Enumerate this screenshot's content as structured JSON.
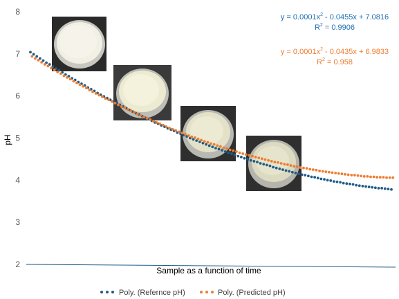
{
  "chart_data": {
    "type": "scatter",
    "xlabel": "Sample as a function of time",
    "ylabel": "pH",
    "ylim": [
      2,
      8
    ],
    "yticks": [
      2,
      3,
      4,
      5,
      6,
      7,
      8
    ],
    "grid": false,
    "legend_position": "bottom",
    "series": [
      {
        "name": "Poly. (Refernce pH)",
        "color": "#1F5C87",
        "x": [
          1,
          3,
          5,
          7,
          9,
          11,
          13,
          15,
          17,
          19,
          21,
          23,
          25,
          27,
          29,
          31,
          33,
          35,
          37,
          39,
          41,
          43,
          45,
          47,
          49,
          51,
          53,
          55,
          57,
          59,
          61,
          63,
          65,
          67,
          69,
          71,
          73,
          75,
          77,
          79,
          81,
          83,
          85,
          87,
          89,
          91,
          93,
          95,
          97,
          99,
          101,
          103,
          105,
          107,
          109,
          111,
          113,
          115,
          117,
          119,
          121,
          123,
          125,
          127,
          129,
          131,
          133,
          135,
          137,
          139,
          141,
          143,
          145,
          147,
          149,
          151,
          153,
          155,
          157,
          159,
          161,
          163,
          165,
          167,
          169,
          171,
          173,
          175,
          177,
          179,
          181,
          183,
          185,
          187,
          189,
          191,
          193,
          195,
          197,
          199,
          201,
          203,
          205,
          207,
          209,
          211,
          213,
          215,
          217,
          219,
          221,
          223,
          225,
          227
        ],
        "y": [
          7.04,
          6.99,
          6.94,
          6.89,
          6.84,
          6.79,
          6.75,
          6.7,
          6.65,
          6.61,
          6.56,
          6.51,
          6.47,
          6.42,
          6.38,
          6.33,
          6.29,
          6.25,
          6.2,
          6.16,
          6.12,
          6.07,
          6.03,
          5.99,
          5.95,
          5.91,
          5.87,
          5.83,
          5.79,
          5.75,
          5.71,
          5.67,
          5.63,
          5.59,
          5.56,
          5.52,
          5.48,
          5.45,
          5.41,
          5.37,
          5.34,
          5.3,
          5.27,
          5.23,
          5.2,
          5.17,
          5.13,
          5.1,
          5.07,
          5.04,
          5.0,
          4.97,
          4.94,
          4.91,
          4.88,
          4.85,
          4.82,
          4.79,
          4.76,
          4.74,
          4.71,
          4.68,
          4.65,
          4.63,
          4.6,
          4.57,
          4.55,
          4.52,
          4.5,
          4.47,
          4.45,
          4.43,
          4.4,
          4.38,
          4.36,
          4.34,
          4.31,
          4.29,
          4.27,
          4.25,
          4.23,
          4.21,
          4.19,
          4.17,
          4.15,
          4.13,
          4.12,
          4.1,
          4.08,
          4.07,
          4.05,
          4.03,
          4.02,
          4.0,
          3.99,
          3.97,
          3.96,
          3.95,
          3.93,
          3.92,
          3.91,
          3.9,
          3.88,
          3.87,
          3.86,
          3.85,
          3.84,
          3.83,
          3.82,
          3.81,
          3.81,
          3.8,
          3.79,
          3.78
        ],
        "equation": "y = 0.0001x",
        "equation_tail": " - 0.0455x + 7.0816",
        "r2_value": " = 0.9906"
      },
      {
        "name": "Poly. (Predicted pH)",
        "color": "#ED7D31",
        "x": [
          1,
          3,
          5,
          7,
          9,
          11,
          13,
          15,
          17,
          19,
          21,
          23,
          25,
          27,
          29,
          31,
          33,
          35,
          37,
          39,
          41,
          43,
          45,
          47,
          49,
          51,
          53,
          55,
          57,
          59,
          61,
          63,
          65,
          67,
          69,
          71,
          73,
          75,
          77,
          79,
          81,
          83,
          85,
          87,
          89,
          91,
          93,
          95,
          97,
          99,
          101,
          103,
          105,
          107,
          109,
          111,
          113,
          115,
          117,
          119,
          121,
          123,
          125,
          127,
          129,
          131,
          133,
          135,
          137,
          139,
          141,
          143,
          145,
          147,
          149,
          151,
          153,
          155,
          157,
          159,
          161,
          163,
          165,
          167,
          169,
          171,
          173,
          175,
          177,
          179,
          181,
          183,
          185,
          187,
          189,
          191,
          193,
          195,
          197,
          199,
          201,
          203,
          205,
          207,
          209,
          211,
          213,
          215,
          217,
          219,
          221,
          223,
          225,
          227
        ],
        "y": [
          6.94,
          6.89,
          6.85,
          6.8,
          6.75,
          6.71,
          6.66,
          6.62,
          6.57,
          6.53,
          6.48,
          6.44,
          6.4,
          6.35,
          6.31,
          6.27,
          6.23,
          6.19,
          6.14,
          6.1,
          6.06,
          6.02,
          5.98,
          5.94,
          5.91,
          5.87,
          5.83,
          5.79,
          5.75,
          5.72,
          5.68,
          5.65,
          5.61,
          5.57,
          5.54,
          5.5,
          5.47,
          5.44,
          5.4,
          5.37,
          5.34,
          5.31,
          5.27,
          5.24,
          5.21,
          5.18,
          5.15,
          5.12,
          5.09,
          5.06,
          5.03,
          5.01,
          4.98,
          4.95,
          4.92,
          4.9,
          4.87,
          4.85,
          4.82,
          4.8,
          4.77,
          4.75,
          4.72,
          4.7,
          4.68,
          4.65,
          4.63,
          4.61,
          4.59,
          4.57,
          4.55,
          4.53,
          4.51,
          4.49,
          4.47,
          4.45,
          4.43,
          4.42,
          4.4,
          4.38,
          4.37,
          4.35,
          4.33,
          4.32,
          4.3,
          4.29,
          4.28,
          4.26,
          4.25,
          4.24,
          4.22,
          4.21,
          4.2,
          4.19,
          4.18,
          4.17,
          4.16,
          4.15,
          4.14,
          4.13,
          4.12,
          4.12,
          4.11,
          4.1,
          4.09,
          4.09,
          4.08,
          4.08,
          4.07,
          4.07,
          4.07,
          4.06,
          4.06,
          4.06
        ],
        "equation": "y = 0.0001x",
        "equation_tail": " - 0.0435x + 6.9833",
        "r2_value": " = 0.958"
      }
    ]
  }
}
